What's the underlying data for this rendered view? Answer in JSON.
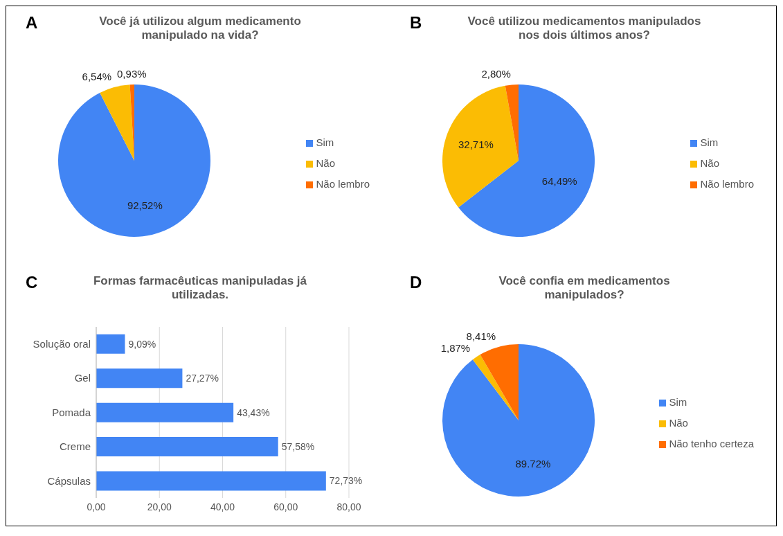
{
  "chart_data": [
    {
      "type": "pie",
      "title": "Você já utilizou algum medicamento manipulado na vida?",
      "annotations": [
        "A"
      ],
      "categories": [
        "Sim",
        "Não",
        "Não lembro"
      ],
      "values": [
        92.52,
        6.54,
        0.93
      ],
      "value_labels": [
        "92,52%",
        "6,54%",
        "0,93%"
      ],
      "colors": [
        "#4285f4",
        "#fbbc04",
        "#ff6d01"
      ],
      "legend": "right"
    },
    {
      "type": "pie",
      "title": "Você utilizou medicamentos manipulados nos dois últimos anos?",
      "annotations": [
        "B"
      ],
      "categories": [
        "Sim",
        "Não",
        "Não lembro"
      ],
      "values": [
        64.49,
        32.71,
        2.8
      ],
      "value_labels": [
        "64,49%",
        "32,71%",
        "2,80%"
      ],
      "colors": [
        "#4285f4",
        "#fbbc04",
        "#ff6d01"
      ],
      "legend": "right"
    },
    {
      "type": "bar",
      "orientation": "horizontal",
      "title": "Formas farmacêuticas manipuladas já utilizadas.",
      "annotations": [
        "C"
      ],
      "categories": [
        "Solução oral",
        "Gel",
        "Pomada",
        "Creme",
        "Cápsulas"
      ],
      "values": [
        9.09,
        27.27,
        43.43,
        57.58,
        72.73
      ],
      "value_labels": [
        "9,09%",
        "27,27%",
        "43,43%",
        "57,58%",
        "72,73%"
      ],
      "color": "#4285f4",
      "xlim": [
        0,
        80
      ],
      "xticks": [
        {
          "value": 0,
          "label": "0,00"
        },
        {
          "value": 20,
          "label": "20,00"
        },
        {
          "value": 40,
          "label": "40,00"
        },
        {
          "value": 60,
          "label": "60,00"
        },
        {
          "value": 80,
          "label": "80,00"
        }
      ],
      "grid": "x"
    },
    {
      "type": "pie",
      "title": "Você confia em medicamentos manipulados?",
      "annotations": [
        "D"
      ],
      "categories": [
        "Sim",
        "Não",
        "Não tenho certeza"
      ],
      "values": [
        89.72,
        1.87,
        8.41
      ],
      "value_labels": [
        "89.72%",
        "1,87%",
        "8,41%"
      ],
      "colors": [
        "#4285f4",
        "#fbbc04",
        "#ff6d01"
      ],
      "legend": "right"
    }
  ]
}
